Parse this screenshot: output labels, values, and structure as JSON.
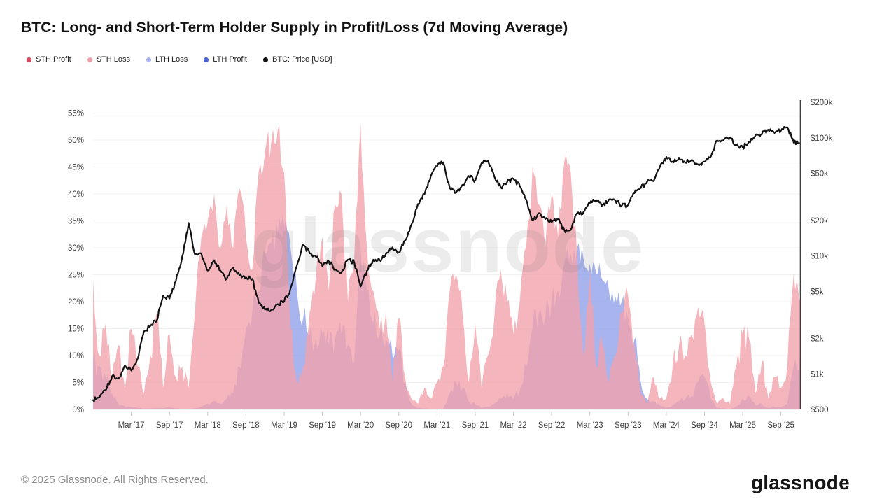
{
  "header": {
    "title": "BTC: Long- and Short-Term Holder Supply in Profit/Loss (7d Moving Average)"
  },
  "legend": {
    "items": [
      {
        "label": "STH Profit",
        "color": "#d6485f",
        "struck": true
      },
      {
        "label": "STH Loss",
        "color": "#f2a0aa",
        "struck": false
      },
      {
        "label": "LTH Loss",
        "color": "#a9b4ee",
        "struck": false
      },
      {
        "label": "LTH Profit",
        "color": "#4a5fd0",
        "struck": true
      },
      {
        "label": "BTC: Price [USD]",
        "color": "#111111",
        "struck": false
      }
    ]
  },
  "chart_data": {
    "type": "area",
    "title": "BTC: Long- and Short-Term Holder Supply in Profit/Loss (7d Moving Average)",
    "watermark": "glassnode",
    "hidden_series": [
      "STH Profit",
      "LTH Profit"
    ],
    "x": [
      "2016-09",
      "2016-10",
      "2016-11",
      "2016-12",
      "2017-01",
      "2017-02",
      "2017-03",
      "2017-04",
      "2017-05",
      "2017-06",
      "2017-07",
      "2017-08",
      "2017-09",
      "2017-10",
      "2017-11",
      "2017-12",
      "2018-01",
      "2018-02",
      "2018-03",
      "2018-04",
      "2018-05",
      "2018-06",
      "2018-07",
      "2018-08",
      "2018-09",
      "2018-10",
      "2018-11",
      "2018-12",
      "2019-01",
      "2019-02",
      "2019-03",
      "2019-04",
      "2019-05",
      "2019-06",
      "2019-07",
      "2019-08",
      "2019-09",
      "2019-10",
      "2019-11",
      "2019-12",
      "2020-01",
      "2020-02",
      "2020-03",
      "2020-04",
      "2020-05",
      "2020-06",
      "2020-07",
      "2020-08",
      "2020-09",
      "2020-10",
      "2020-11",
      "2020-12",
      "2021-01",
      "2021-02",
      "2021-03",
      "2021-04",
      "2021-05",
      "2021-06",
      "2021-07",
      "2021-08",
      "2021-09",
      "2021-10",
      "2021-11",
      "2021-12",
      "2022-01",
      "2022-02",
      "2022-03",
      "2022-04",
      "2022-05",
      "2022-06",
      "2022-07",
      "2022-08",
      "2022-09",
      "2022-10",
      "2022-11",
      "2022-12",
      "2023-01",
      "2023-02",
      "2023-03",
      "2023-04",
      "2023-05",
      "2023-06",
      "2023-07",
      "2023-08",
      "2023-09",
      "2023-10",
      "2023-11",
      "2023-12",
      "2024-01",
      "2024-02",
      "2024-03",
      "2024-04",
      "2024-05",
      "2024-06",
      "2024-07",
      "2024-08",
      "2024-09",
      "2024-10",
      "2024-11",
      "2024-12",
      "2025-01",
      "2025-02",
      "2025-03",
      "2025-04",
      "2025-05",
      "2025-06",
      "2025-07",
      "2025-08",
      "2025-09",
      "2025-10",
      "2025-11",
      "2025-12"
    ],
    "series": [
      {
        "name": "STH Loss",
        "type": "area",
        "axis": "percent",
        "color": "#f2a0aa",
        "fill_opacity": 0.78,
        "values": [
          24,
          10,
          16,
          6,
          12,
          4,
          15,
          8,
          3,
          10,
          18,
          4,
          14,
          6,
          8,
          4,
          18,
          32,
          35,
          40,
          30,
          38,
          30,
          41,
          32,
          26,
          44,
          48,
          50,
          52,
          44,
          15,
          5,
          8,
          18,
          25,
          32,
          22,
          38,
          40,
          20,
          28,
          53,
          30,
          22,
          15,
          18,
          5,
          17,
          6,
          2,
          1,
          4,
          2,
          5,
          8,
          22,
          25,
          18,
          5,
          16,
          4,
          10,
          17,
          26,
          20,
          14,
          20,
          30,
          45,
          38,
          30,
          40,
          32,
          46,
          44,
          28,
          10,
          26,
          8,
          12,
          5,
          10,
          18,
          21,
          12,
          3,
          1,
          6,
          2,
          2,
          8,
          12,
          10,
          14,
          19,
          16,
          5,
          1,
          2,
          1,
          8,
          14,
          13,
          3,
          9,
          2,
          6,
          4,
          8,
          25,
          20
        ]
      },
      {
        "name": "LTH Loss",
        "type": "area",
        "axis": "percent",
        "color": "#8b9be8",
        "fill_opacity": 0.75,
        "values": [
          9,
          8,
          6,
          3,
          1,
          0.5,
          0.4,
          0.3,
          0.2,
          0.2,
          0.3,
          0.2,
          0.4,
          0.2,
          0.1,
          0.1,
          0.2,
          0.5,
          1,
          1.5,
          1,
          2,
          3,
          8,
          15,
          18,
          22,
          29,
          31,
          33,
          34,
          30,
          22,
          17,
          14,
          13,
          14,
          12,
          13,
          14,
          12,
          9,
          30,
          22,
          16,
          14,
          13,
          10,
          11,
          5,
          1,
          0.3,
          0.2,
          0.1,
          0.1,
          0.1,
          3,
          5,
          4,
          1.5,
          1,
          0.3,
          0.5,
          1,
          2,
          3,
          2,
          3.5,
          8,
          15,
          18,
          17,
          20,
          22,
          27,
          29,
          30,
          28,
          27,
          25,
          24,
          22,
          21,
          20,
          17,
          13,
          5,
          2,
          1.5,
          0.8,
          0.3,
          0.8,
          1.5,
          2,
          2.5,
          5,
          6,
          2,
          0.3,
          0.2,
          0.1,
          0.5,
          2,
          2.5,
          0.8,
          1,
          0.3,
          0.5,
          0.4,
          1,
          8,
          10
        ]
      },
      {
        "name": "BTC: Price [USD]",
        "type": "line",
        "axis": "price_log",
        "color": "#111111",
        "stroke_width": 2.2,
        "values": [
          600,
          635,
          730,
          960,
          920,
          1180,
          1070,
          1350,
          2300,
          2550,
          2850,
          4600,
          4350,
          6100,
          9900,
          19000,
          10200,
          10500,
          7500,
          9200,
          7500,
          6400,
          7900,
          6800,
          6600,
          6400,
          4000,
          3500,
          3500,
          3900,
          4100,
          5300,
          8300,
          12500,
          10500,
          9800,
          8200,
          9000,
          7600,
          7200,
          9300,
          8800,
          5500,
          7500,
          9300,
          9200,
          10500,
          11800,
          10700,
          13500,
          18500,
          27500,
          33000,
          47000,
          57000,
          62000,
          38000,
          34500,
          40000,
          47500,
          43500,
          61000,
          64000,
          47000,
          38000,
          42000,
          45000,
          39000,
          30000,
          20000,
          23000,
          20500,
          19200,
          20500,
          16500,
          16600,
          23000,
          23500,
          28000,
          29500,
          27000,
          30000,
          29500,
          26500,
          27000,
          34000,
          37500,
          42500,
          43000,
          57000,
          69000,
          63000,
          68000,
          61500,
          65000,
          59500,
          63000,
          69500,
          95000,
          96000,
          100000,
          86000,
          83000,
          93000,
          105000,
          107000,
          117000,
          110000,
          115000,
          122000,
          91000,
          90000
        ]
      }
    ],
    "percent_axis": {
      "side": "left",
      "min": 0,
      "max": 57,
      "grid": true,
      "ticks": [
        {
          "value": 0,
          "label": "0%"
        },
        {
          "value": 5,
          "label": "5%"
        },
        {
          "value": 10,
          "label": "10%"
        },
        {
          "value": 15,
          "label": "15%"
        },
        {
          "value": 20,
          "label": "20%"
        },
        {
          "value": 25,
          "label": "25%"
        },
        {
          "value": 30,
          "label": "30%"
        },
        {
          "value": 35,
          "label": "35%"
        },
        {
          "value": 40,
          "label": "40%"
        },
        {
          "value": 45,
          "label": "45%"
        },
        {
          "value": 50,
          "label": "50%"
        },
        {
          "value": 55,
          "label": "55%"
        }
      ]
    },
    "price_axis": {
      "side": "right",
      "scale": "log",
      "min": 500,
      "max": 200000,
      "grid": false,
      "ticks": [
        {
          "value": 200000,
          "label": "$200k"
        },
        {
          "value": 100000,
          "label": "$100k"
        },
        {
          "value": 50000,
          "label": "$50k"
        },
        {
          "value": 20000,
          "label": "$20k"
        },
        {
          "value": 10000,
          "label": "$10k"
        },
        {
          "value": 5000,
          "label": "$5k"
        },
        {
          "value": 2000,
          "label": "$2k"
        },
        {
          "value": 1000,
          "label": "$1k"
        },
        {
          "value": 500,
          "label": "$500"
        }
      ]
    },
    "x_ticks": [
      {
        "index": 6,
        "label": "Mar '17"
      },
      {
        "index": 12,
        "label": "Sep '17"
      },
      {
        "index": 18,
        "label": "Mar '18"
      },
      {
        "index": 24,
        "label": "Sep '18"
      },
      {
        "index": 30,
        "label": "Mar '19"
      },
      {
        "index": 36,
        "label": "Sep '19"
      },
      {
        "index": 42,
        "label": "Mar '20"
      },
      {
        "index": 48,
        "label": "Sep '20"
      },
      {
        "index": 54,
        "label": "Mar '21"
      },
      {
        "index": 60,
        "label": "Sep '21"
      },
      {
        "index": 66,
        "label": "Mar '22"
      },
      {
        "index": 72,
        "label": "Sep '22"
      },
      {
        "index": 78,
        "label": "Mar '23"
      },
      {
        "index": 84,
        "label": "Sep '23"
      },
      {
        "index": 90,
        "label": "Mar '24"
      },
      {
        "index": 96,
        "label": "Sep '24"
      },
      {
        "index": 102,
        "label": "Mar '25"
      },
      {
        "index": 108,
        "label": "Sep '25"
      }
    ]
  },
  "footer": {
    "copyright": "© 2025 Glassnode. All Rights Reserved.",
    "brand": "glassnode"
  }
}
